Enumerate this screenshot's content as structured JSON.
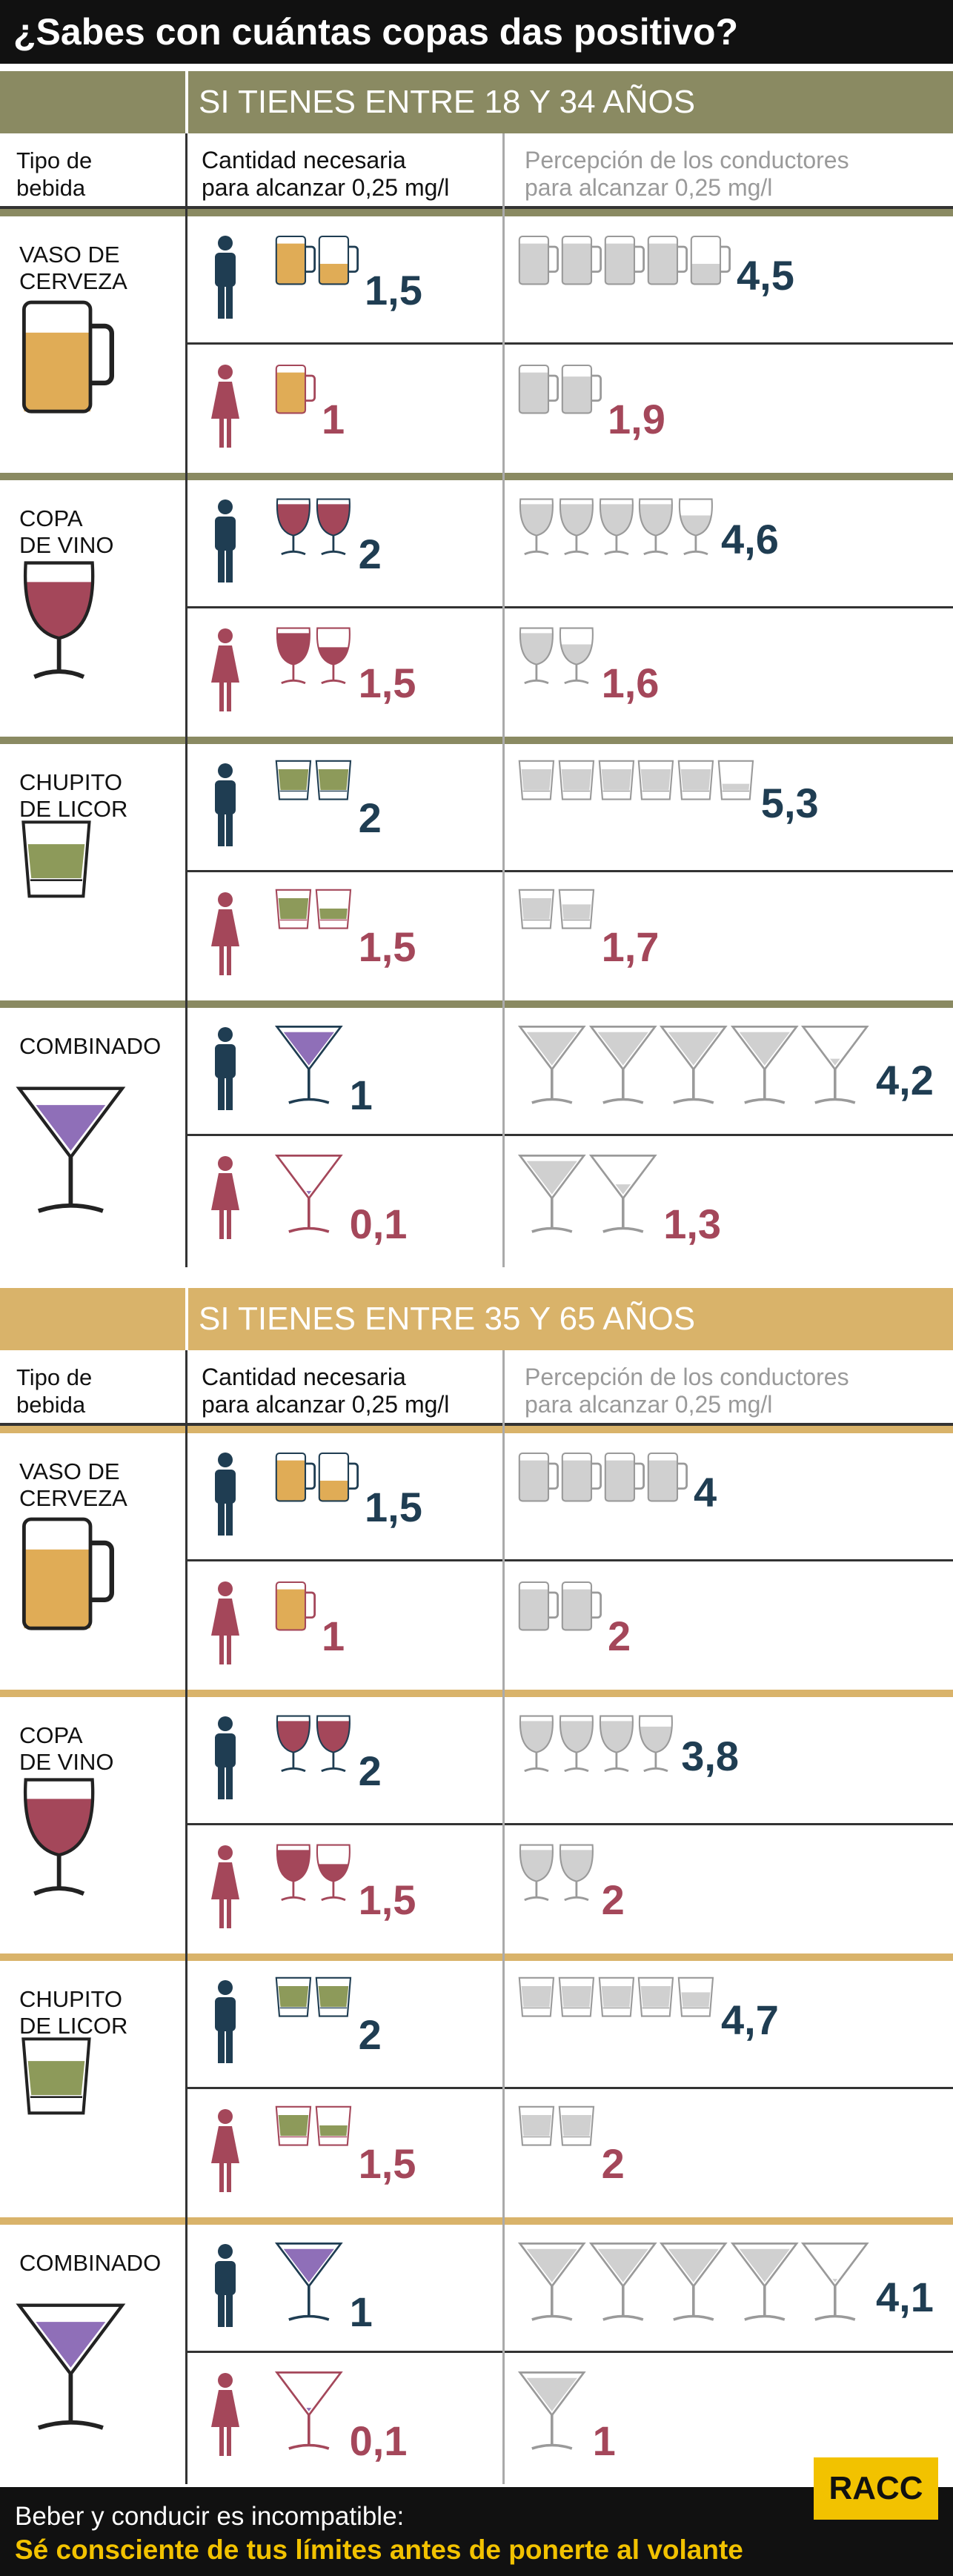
{
  "title": "¿Sabes con cuántas copas das positivo?",
  "colors": {
    "section1": "#8a8a62",
    "section2": "#d9b36a",
    "male": "#1f3d52",
    "female": "#a4475a",
    "beer": "#e0ac56",
    "wine": "#a4475a",
    "liquor": "#8d9a5a",
    "cocktail": "#8f6fb8",
    "gray": "#d0d0d0"
  },
  "headers": {
    "tipo": "Tipo de\nbebida",
    "cantidad": "Cantidad necesaria\npara alcanzar 0,25 mg/l",
    "percepcion": "Percepción de los conductores\npara alcanzar 0,25 mg/l"
  },
  "sections": [
    {
      "title": "SI TIENES ENTRE 18 Y 34 AÑOS",
      "groups": [
        {
          "drink": "beer",
          "label": "VASO DE\nCERVEZA",
          "male": {
            "amount": "1,5",
            "icons": [
              1,
              0.5
            ],
            "perceived": "4,5",
            "picons": [
              1,
              1,
              1,
              1,
              0.5
            ]
          },
          "female": {
            "amount": "1",
            "icons": [
              1
            ],
            "perceived": "1,9",
            "picons": [
              1,
              0.9
            ]
          }
        },
        {
          "drink": "wine",
          "label": "COPA\nDE VINO",
          "male": {
            "amount": "2",
            "icons": [
              1,
              1
            ],
            "perceived": "4,6",
            "picons": [
              1,
              1,
              1,
              1,
              0.6
            ]
          },
          "female": {
            "amount": "1,5",
            "icons": [
              1,
              0.5
            ],
            "perceived": "1,6",
            "picons": [
              1,
              0.6
            ]
          }
        },
        {
          "drink": "liquor",
          "label": "CHUPITO\nDE LICOR",
          "male": {
            "amount": "2",
            "icons": [
              1,
              1
            ],
            "perceived": "5,3",
            "picons": [
              1,
              1,
              1,
              1,
              1,
              0.3
            ]
          },
          "female": {
            "amount": "1,5",
            "icons": [
              1,
              0.5
            ],
            "perceived": "1,7",
            "picons": [
              1,
              0.7
            ]
          }
        },
        {
          "drink": "cocktail",
          "label": "COMBINADO",
          "male": {
            "amount": "1",
            "icons": [
              1
            ],
            "perceived": "4,2",
            "picons": [
              1,
              1,
              1,
              1,
              0.2
            ]
          },
          "female": {
            "amount": "0,1",
            "icons": [
              0.1
            ],
            "perceived": "1,3",
            "picons": [
              1,
              0.3
            ]
          }
        }
      ]
    },
    {
      "title": "SI TIENES ENTRE 35 Y 65 AÑOS",
      "groups": [
        {
          "drink": "beer",
          "label": "VASO DE\nCERVEZA",
          "male": {
            "amount": "1,5",
            "icons": [
              1,
              0.5
            ],
            "perceived": "4",
            "picons": [
              1,
              1,
              1,
              1
            ]
          },
          "female": {
            "amount": "1",
            "icons": [
              1
            ],
            "perceived": "2",
            "picons": [
              1,
              1
            ]
          }
        },
        {
          "drink": "wine",
          "label": "COPA\nDE VINO",
          "male": {
            "amount": "2",
            "icons": [
              1,
              1
            ],
            "perceived": "3,8",
            "picons": [
              1,
              1,
              1,
              0.8
            ]
          },
          "female": {
            "amount": "1,5",
            "icons": [
              1,
              0.5
            ],
            "perceived": "2",
            "picons": [
              1,
              1
            ]
          }
        },
        {
          "drink": "liquor",
          "label": "CHUPITO\nDE LICOR",
          "male": {
            "amount": "2",
            "icons": [
              1,
              1
            ],
            "perceived": "4,7",
            "picons": [
              1,
              1,
              1,
              1,
              0.7
            ]
          },
          "female": {
            "amount": "1,5",
            "icons": [
              1,
              0.5
            ],
            "perceived": "2",
            "picons": [
              1,
              1
            ]
          }
        },
        {
          "drink": "cocktail",
          "label": "COMBINADO",
          "male": {
            "amount": "1",
            "icons": [
              1
            ],
            "perceived": "4,1",
            "picons": [
              1,
              1,
              1,
              1,
              0.1
            ]
          },
          "female": {
            "amount": "0,1",
            "icons": [
              0.1
            ],
            "perceived": "1",
            "picons": [
              1
            ]
          }
        }
      ]
    }
  ],
  "footer": {
    "line1": "Beber y conducir es incompatible:",
    "line2": "Sé consciente de tus límites antes de ponerte al volante"
  },
  "logo": "RACC"
}
